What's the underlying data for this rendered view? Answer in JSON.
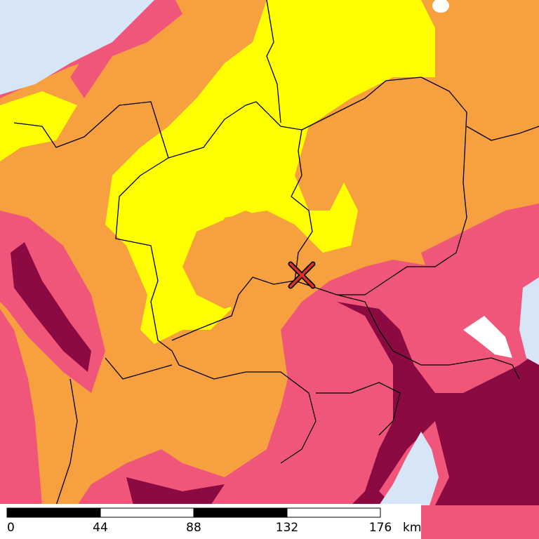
{
  "scale_bar": {
    "ticks": [
      0,
      44,
      88,
      132,
      176
    ],
    "unit": "km"
  }
}
